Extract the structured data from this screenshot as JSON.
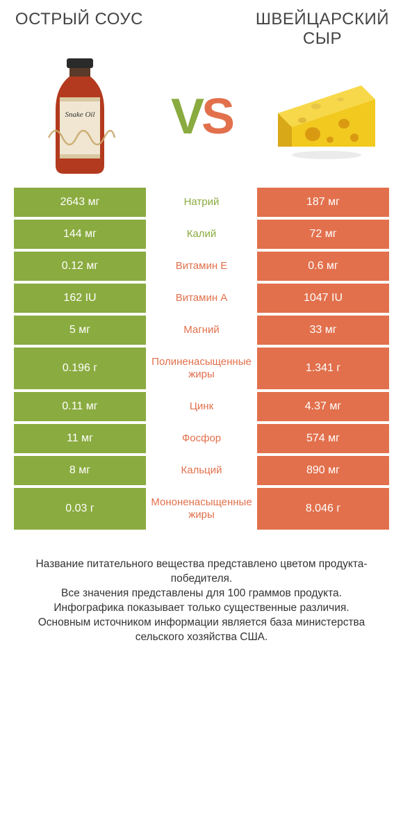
{
  "colors": {
    "left": "#8aab3f",
    "right": "#e2704c",
    "white": "#ffffff"
  },
  "left": {
    "title": "ОСТРЫЙ СОУС"
  },
  "right": {
    "title": "ШВЕЙЦАРСКИЙ СЫР"
  },
  "vs": {
    "v": "V",
    "s": "S"
  },
  "rows": [
    {
      "label": "Натрий",
      "left": "2643 мг",
      "right": "187 мг",
      "winner": "left"
    },
    {
      "label": "Калий",
      "left": "144 мг",
      "right": "72 мг",
      "winner": "left"
    },
    {
      "label": "Витамин E",
      "left": "0.12 мг",
      "right": "0.6 мг",
      "winner": "right"
    },
    {
      "label": "Витамин A",
      "left": "162 IU",
      "right": "1047 IU",
      "winner": "right"
    },
    {
      "label": "Магний",
      "left": "5 мг",
      "right": "33 мг",
      "winner": "right"
    },
    {
      "label": "Полиненасыщенные жиры",
      "left": "0.196 г",
      "right": "1.341 г",
      "winner": "right"
    },
    {
      "label": "Цинк",
      "left": "0.11 мг",
      "right": "4.37 мг",
      "winner": "right"
    },
    {
      "label": "Фосфор",
      "left": "11 мг",
      "right": "574 мг",
      "winner": "right"
    },
    {
      "label": "Кальций",
      "left": "8 мг",
      "right": "890 мг",
      "winner": "right"
    },
    {
      "label": "Мононенасыщенные жиры",
      "left": "0.03 г",
      "right": "8.046 г",
      "winner": "right"
    }
  ],
  "footnote": {
    "l1": "Название питательного вещества представлено цветом продукта-победителя.",
    "l2": "Все значения представлены для 100 граммов продукта.",
    "l3": "Инфографика показывает только существенные различия.",
    "l4": "Основным источником информации является база министерства сельского хозяйства США."
  }
}
